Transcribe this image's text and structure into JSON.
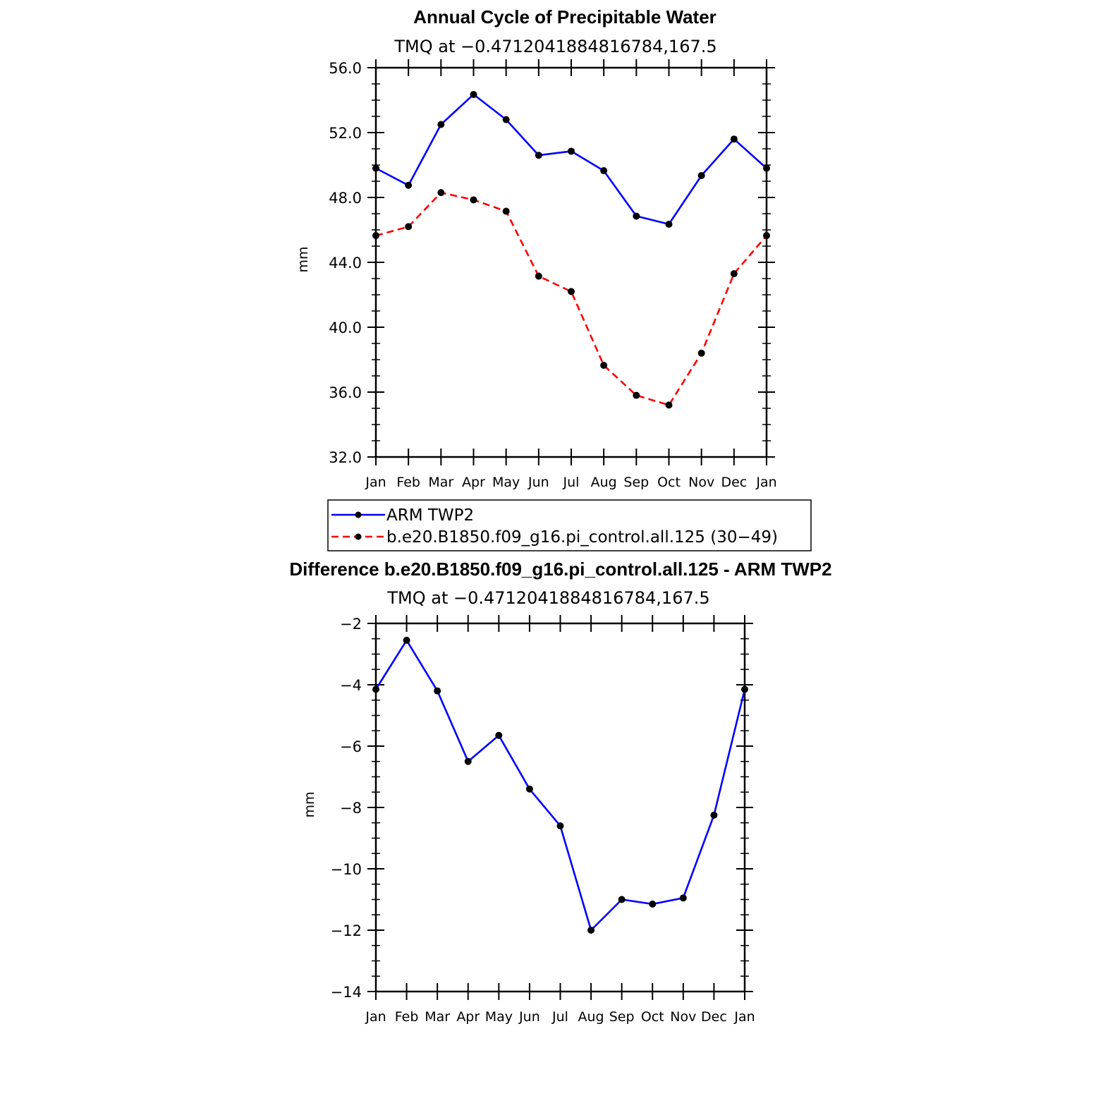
{
  "chart_data": [
    {
      "type": "line",
      "title": "Annual Cycle of Precipitable Water",
      "subtitle": "TMQ at −0.4712041884816784,167.5",
      "xlabel": "",
      "ylabel": "mm",
      "categories": [
        "Jan",
        "Feb",
        "Mar",
        "Apr",
        "May",
        "Jun",
        "Jul",
        "Aug",
        "Sep",
        "Oct",
        "Nov",
        "Dec",
        "Jan"
      ],
      "ylim": [
        32.0,
        56.0
      ],
      "yticks": [
        "32.0",
        "36.0",
        "40.0",
        "44.0",
        "48.0",
        "52.0",
        "56.0"
      ],
      "grid": false,
      "legend_position": "bottom",
      "series": [
        {
          "name": "ARM TWP2",
          "color": "#0000ff",
          "line": "solid",
          "values": [
            49.8,
            48.75,
            52.5,
            54.35,
            52.8,
            50.6,
            50.85,
            49.65,
            46.85,
            46.35,
            49.35,
            51.6,
            49.8
          ]
        },
        {
          "name": "b.e20.B1850.f09_g16.pi_control.all.125 (30−49)",
          "color": "#ff0000",
          "line": "dashed",
          "values": [
            45.65,
            46.2,
            48.3,
            47.85,
            47.15,
            43.15,
            42.2,
            37.65,
            35.8,
            35.2,
            38.4,
            43.3,
            45.65
          ]
        }
      ]
    },
    {
      "type": "line",
      "title": "Difference b.e20.B1850.f09_g16.pi_control.all.125 - ARM TWP2",
      "subtitle": "TMQ at −0.4712041884816784,167.5",
      "xlabel": "",
      "ylabel": "mm",
      "categories": [
        "Jan",
        "Feb",
        "Mar",
        "Apr",
        "May",
        "Jun",
        "Jul",
        "Aug",
        "Sep",
        "Oct",
        "Nov",
        "Dec",
        "Jan"
      ],
      "ylim": [
        -14,
        -2
      ],
      "yticks": [
        "−14",
        "−12",
        "−10",
        "−8",
        "−6",
        "−4",
        "−2"
      ],
      "grid": false,
      "series": [
        {
          "color": "#0000ff",
          "line": "solid",
          "values": [
            -4.15,
            -2.55,
            -4.2,
            -6.5,
            -5.65,
            -7.4,
            -8.6,
            -12.0,
            -11.0,
            -11.15,
            -10.95,
            -8.25,
            -4.15
          ]
        }
      ]
    }
  ]
}
